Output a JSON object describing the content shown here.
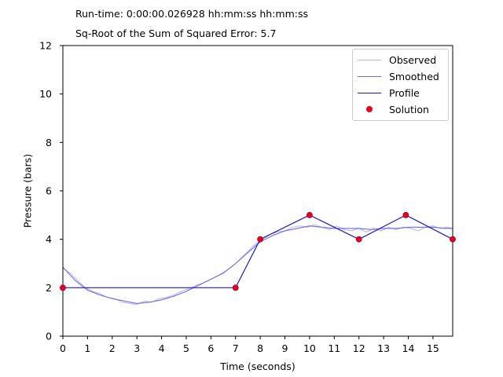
{
  "header": {
    "runtime_label": "Run-time: 0:00:00.026928 hh:mm:ss hh:mm:ss",
    "error_label": "Sq-Root of the Sum of Squared Error: 5.7"
  },
  "colors": {
    "observed": "#b3b3f2",
    "smoothed": "#6b6bee",
    "profile": "#1a1acc",
    "solution_fill": "#e8001c",
    "solution_edge": "#8a0033"
  },
  "chart_data": {
    "type": "line",
    "xlabel": "Time (seconds)",
    "ylabel": "Pressure (bars)",
    "xlim": [
      0,
      15.8
    ],
    "ylim": [
      0,
      12
    ],
    "xticks": [
      "0",
      "1",
      "2",
      "3",
      "4",
      "5",
      "6",
      "7",
      "8",
      "9",
      "10",
      "11",
      "12",
      "13",
      "14",
      "15"
    ],
    "yticks": [
      "0",
      "2",
      "4",
      "6",
      "8",
      "10",
      "12"
    ],
    "grid": false,
    "legend_position": "top-right",
    "legend": [
      "Observed",
      "Smoothed",
      "Profile",
      "Solution"
    ],
    "series": [
      {
        "name": "Observed",
        "x": [
          0,
          0.3,
          0.6,
          0.9,
          1.2,
          1.5,
          1.8,
          2.1,
          2.4,
          2.7,
          3.0,
          3.3,
          3.6,
          3.9,
          4.2,
          4.5,
          4.8,
          5.1,
          5.4,
          5.7,
          6.0,
          6.3,
          6.6,
          6.9,
          7.2,
          7.5,
          7.8,
          8.1,
          8.4,
          8.7,
          9.0,
          9.3,
          9.6,
          9.9,
          10.2,
          10.5,
          10.8,
          11.1,
          11.4,
          11.7,
          12.0,
          12.3,
          12.6,
          12.9,
          13.2,
          13.5,
          13.8,
          14.1,
          14.4,
          14.7,
          15.0,
          15.3,
          15.6,
          15.8
        ],
        "y": [
          2.8,
          2.6,
          2.3,
          2.0,
          1.85,
          1.75,
          1.6,
          1.55,
          1.4,
          1.35,
          1.3,
          1.45,
          1.4,
          1.55,
          1.6,
          1.7,
          1.85,
          1.95,
          2.1,
          2.2,
          2.35,
          2.5,
          2.7,
          2.9,
          3.2,
          3.5,
          3.8,
          4.0,
          4.2,
          4.3,
          4.35,
          4.5,
          4.55,
          4.5,
          4.6,
          4.5,
          4.4,
          4.55,
          4.4,
          4.35,
          4.45,
          4.3,
          4.45,
          4.35,
          4.5,
          4.4,
          4.5,
          4.45,
          4.35,
          4.5,
          4.55,
          4.45,
          4.5,
          4.45
        ]
      },
      {
        "name": "Smoothed",
        "x": [
          0,
          0.5,
          1,
          1.5,
          2,
          2.5,
          3,
          3.5,
          4,
          4.5,
          5,
          5.5,
          6,
          6.5,
          7,
          7.5,
          8,
          8.5,
          9,
          9.5,
          10,
          10.5,
          11,
          11.5,
          12,
          12.5,
          13,
          13.5,
          14,
          14.5,
          15,
          15.5,
          15.8
        ],
        "y": [
          2.85,
          2.3,
          1.9,
          1.7,
          1.55,
          1.45,
          1.35,
          1.4,
          1.5,
          1.65,
          1.85,
          2.1,
          2.35,
          2.6,
          3.0,
          3.45,
          3.9,
          4.15,
          4.35,
          4.45,
          4.55,
          4.5,
          4.45,
          4.45,
          4.45,
          4.4,
          4.45,
          4.45,
          4.5,
          4.5,
          4.5,
          4.45,
          4.45
        ]
      },
      {
        "name": "Profile",
        "x": [
          0,
          7,
          8,
          10,
          12,
          13.9,
          15.8
        ],
        "y": [
          2,
          2,
          4,
          5,
          4,
          5,
          4
        ]
      },
      {
        "name": "Solution",
        "x": [
          0,
          7,
          8,
          10,
          12,
          13.9,
          15.8
        ],
        "y": [
          2,
          2,
          4,
          5,
          4,
          5,
          4
        ]
      }
    ]
  }
}
